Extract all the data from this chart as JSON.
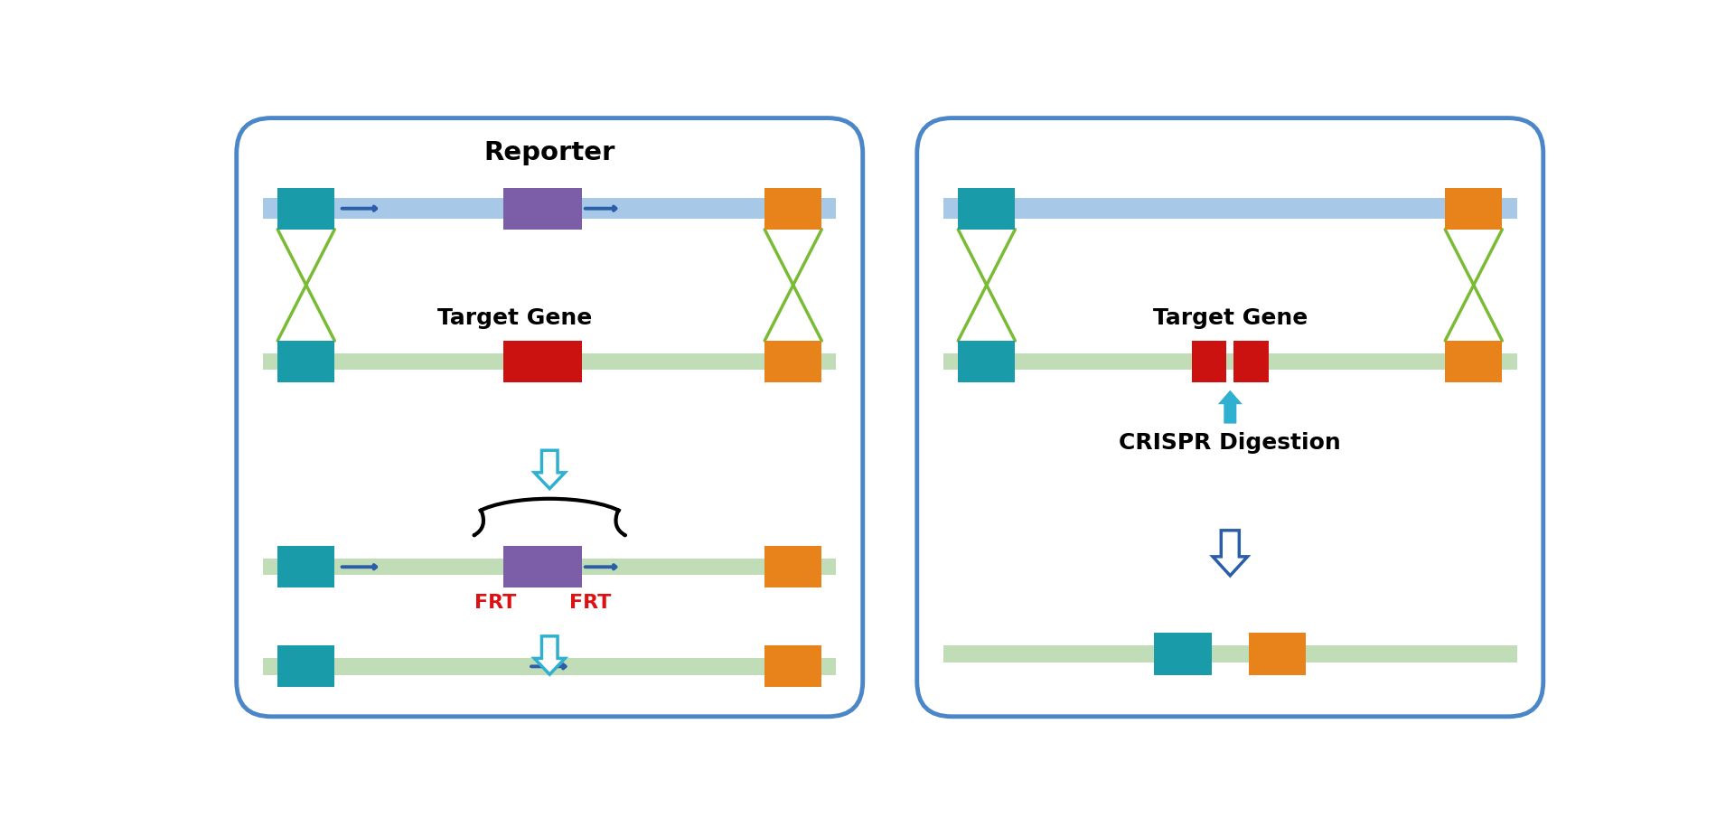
{
  "background": "#ffffff",
  "panel_border_color": "#4a86c8",
  "panel_bg": "#ffffff",
  "colors": {
    "teal": "#1A9BAA",
    "orange": "#E8821A",
    "purple": "#7B5EA7",
    "red": "#CC1111",
    "blue_strand": "#A8C8E8",
    "green_strand": "#C0DDB8",
    "arrow_blue": "#2B5EA8",
    "arrow_cyan": "#30B0D0",
    "green_line": "#7ABB35",
    "black": "#111111",
    "red_text": "#DD1111",
    "white": "#ffffff"
  },
  "left_panel": {
    "title": "Reporter",
    "target_gene_label": "Target Gene",
    "frt_label": "FRT"
  },
  "right_panel": {
    "target_gene_label": "Target Gene",
    "crispr_label": "CRISPR Digestion"
  }
}
